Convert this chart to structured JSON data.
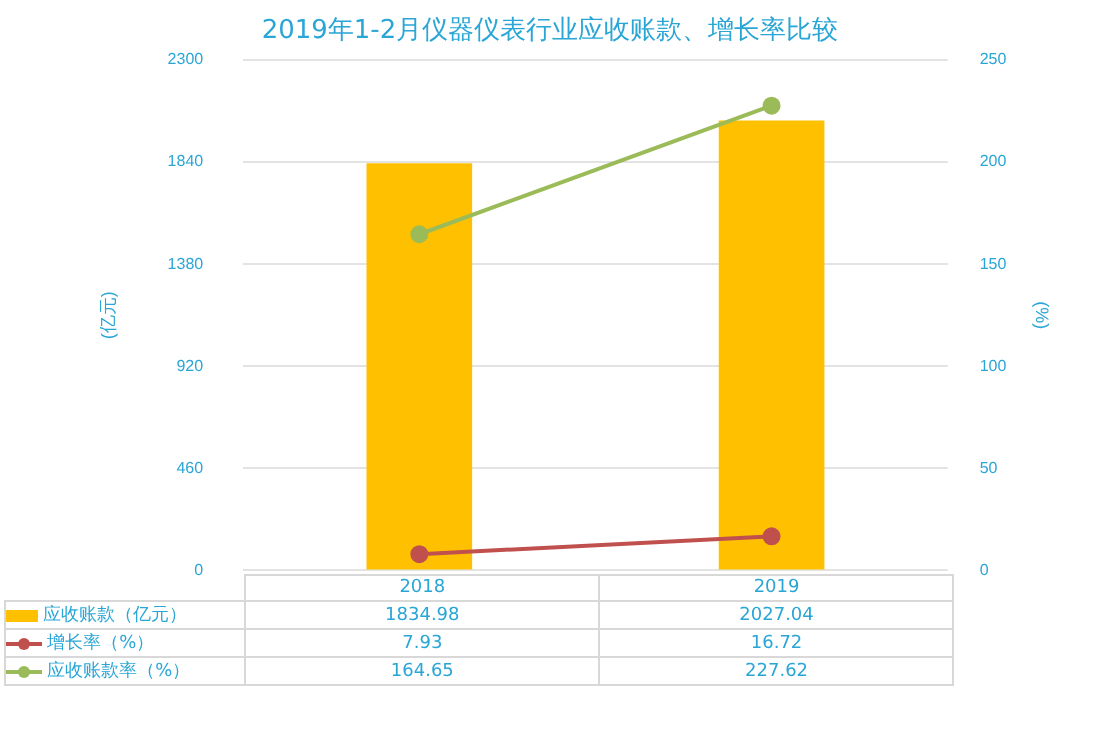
{
  "chart_data": {
    "type": "bar",
    "title": "2019年1-2月仪器仪表行业应收账款、增长率比较",
    "ylabel": "(亿元)",
    "y2label": "(%)",
    "categories": [
      "2018",
      "2019"
    ],
    "series": [
      {
        "name": "应收账款（亿元）",
        "color": "#ffc000",
        "values": [
          1834.98,
          2027.04
        ]
      },
      {
        "name": "增长率（%）",
        "type": "line",
        "axis": "y2",
        "color": "#c0504d",
        "values": [
          7.93,
          16.72
        ]
      },
      {
        "name": "应收账款率（%）",
        "type": "line",
        "axis": "y2",
        "color": "#9bbb59",
        "values": [
          164.65,
          227.62
        ]
      }
    ],
    "ylim": [
      0,
      2300
    ],
    "yticks": [
      0,
      460,
      920,
      1380,
      1840,
      2300
    ],
    "y2lim": [
      0,
      250
    ],
    "y2ticks": [
      0,
      50,
      100,
      150,
      200,
      250
    ],
    "grid": "y",
    "legend": "bottom",
    "marker": "circle",
    "data_labels": true
  }
}
